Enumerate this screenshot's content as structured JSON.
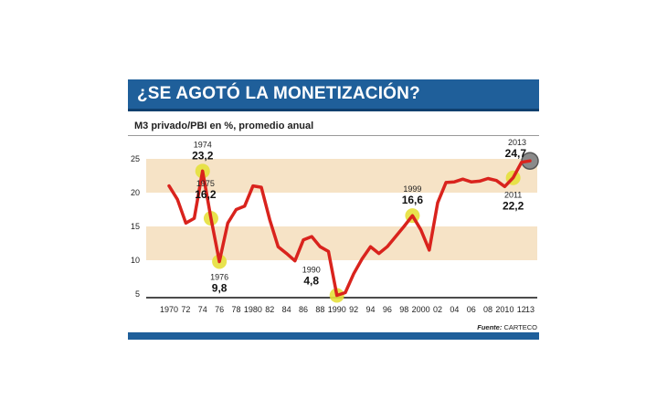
{
  "header": {
    "title": "¿SE AGOTÓ LA MONETIZACIÓN?"
  },
  "subtitle": "M3 privado/PBI en %, promedio anual",
  "source": {
    "label": "Fuente:",
    "name": "CARTECO"
  },
  "colors": {
    "banner": "#1f5f9a",
    "band": "#f6e3c6",
    "line": "#d9231d",
    "marker": "#e5e03b",
    "last_marker": "#8a8a8a"
  },
  "chart_data": {
    "type": "line",
    "title": "¿SE AGOTÓ LA MONETIZACIÓN?",
    "subtitle": "M3 privado/PBI en %, promedio anual",
    "xlabel": "",
    "ylabel": "",
    "ylim": [
      5,
      25
    ],
    "xlim": [
      1970,
      2013
    ],
    "yticks": [
      5,
      10,
      15,
      20,
      25
    ],
    "xticks": [
      {
        "x": 1970,
        "label": "1970"
      },
      {
        "x": 1972,
        "label": "72"
      },
      {
        "x": 1974,
        "label": "74"
      },
      {
        "x": 1976,
        "label": "76"
      },
      {
        "x": 1978,
        "label": "78"
      },
      {
        "x": 1980,
        "label": "1980"
      },
      {
        "x": 1982,
        "label": "82"
      },
      {
        "x": 1984,
        "label": "84"
      },
      {
        "x": 1986,
        "label": "86"
      },
      {
        "x": 1988,
        "label": "88"
      },
      {
        "x": 1990,
        "label": "1990"
      },
      {
        "x": 1992,
        "label": "92"
      },
      {
        "x": 1994,
        "label": "94"
      },
      {
        "x": 1996,
        "label": "96"
      },
      {
        "x": 1998,
        "label": "98"
      },
      {
        "x": 2000,
        "label": "2000"
      },
      {
        "x": 2002,
        "label": "02"
      },
      {
        "x": 2004,
        "label": "04"
      },
      {
        "x": 2006,
        "label": "06"
      },
      {
        "x": 2008,
        "label": "08"
      },
      {
        "x": 2010,
        "label": "2010"
      },
      {
        "x": 2012,
        "label": "12"
      },
      {
        "x": 2013,
        "label": "13"
      }
    ],
    "bands": [
      [
        20,
        25
      ],
      [
        10,
        15
      ]
    ],
    "grid": false,
    "series": [
      {
        "x": [
          1970,
          1971,
          1972,
          1973,
          1974,
          1975,
          1976,
          1977,
          1978,
          1979,
          1980,
          1981,
          1982,
          1983,
          1984,
          1985,
          1986,
          1987,
          1988,
          1989,
          1990,
          1991,
          1992,
          1993,
          1994,
          1995,
          1996,
          1997,
          1998,
          1999,
          2000,
          2001,
          2002,
          2003,
          2004,
          2005,
          2006,
          2007,
          2008,
          2009,
          2010,
          2011,
          2012,
          2013
        ],
        "values": [
          21,
          19,
          15.5,
          16.2,
          23.2,
          16.2,
          9.8,
          15.5,
          17.5,
          18,
          21,
          20.8,
          16,
          12,
          11,
          9.9,
          13,
          13.5,
          12,
          11.3,
          4.8,
          5.2,
          8,
          10.2,
          12,
          11,
          12,
          13.5,
          15,
          16.6,
          14.5,
          11.5,
          18.5,
          21.5,
          21.6,
          22,
          21.6,
          21.7,
          22.1,
          21.8,
          20.9,
          22.2,
          24.5,
          24.7
        ]
      }
    ],
    "annotations": [
      {
        "x": 1974,
        "y": 23.2,
        "year": "1974",
        "value": "23,2"
      },
      {
        "x": 1975,
        "y": 16.2,
        "year": "1975",
        "value": "16,2"
      },
      {
        "x": 1976,
        "y": 9.8,
        "year": "1976",
        "value": "9,8"
      },
      {
        "x": 1990,
        "y": 4.8,
        "year": "1990",
        "value": "4,8"
      },
      {
        "x": 1999,
        "y": 16.6,
        "year": "1999",
        "value": "16,6"
      },
      {
        "x": 2011,
        "y": 22.2,
        "year": "2011",
        "value": "22,2"
      },
      {
        "x": 2013,
        "y": 24.7,
        "year": "2013",
        "value": "24,7"
      }
    ]
  }
}
